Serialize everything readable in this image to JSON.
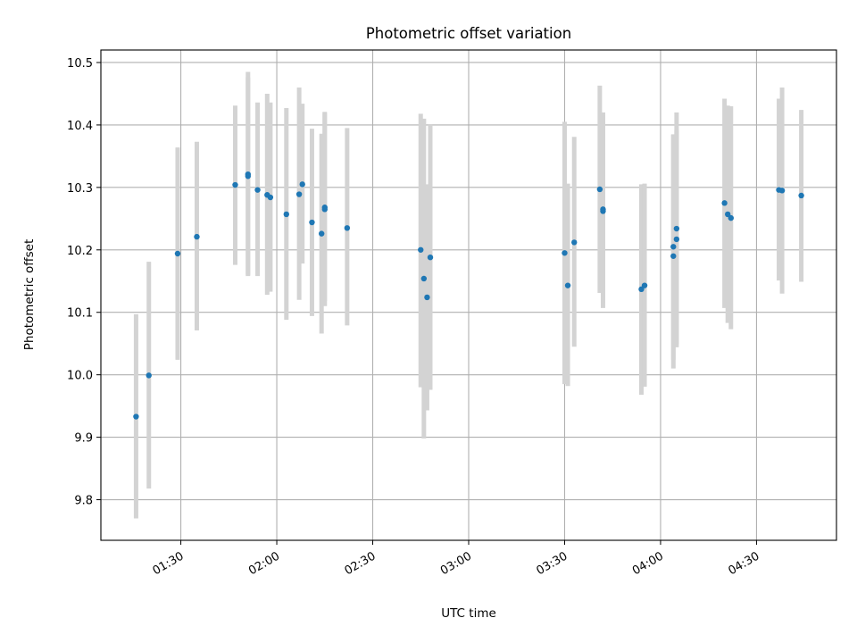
{
  "chart_data": {
    "type": "scatter",
    "title": "Photometric offset variation",
    "xlabel": "UTC time",
    "ylabel": "Photometric offset",
    "xlim_minutes": [
      65,
      295
    ],
    "ylim": [
      9.735,
      10.52
    ],
    "x_ticks": [
      {
        "minutes": 90,
        "label": "01:30"
      },
      {
        "minutes": 120,
        "label": "02:00"
      },
      {
        "minutes": 150,
        "label": "02:30"
      },
      {
        "minutes": 180,
        "label": "03:00"
      },
      {
        "minutes": 210,
        "label": "03:30"
      },
      {
        "minutes": 240,
        "label": "04:00"
      },
      {
        "minutes": 270,
        "label": "04:30"
      }
    ],
    "y_ticks": [
      9.8,
      9.9,
      10.0,
      10.1,
      10.2,
      10.3,
      10.4,
      10.5
    ],
    "grid": true,
    "marker_color": "#1f77b4",
    "errorbar_color": "#d3d3d3",
    "points": [
      {
        "t": "01:16",
        "y": 9.933,
        "lo": 9.77,
        "hi": 10.097
      },
      {
        "t": "01:20",
        "y": 9.999,
        "lo": 9.818,
        "hi": 10.181
      },
      {
        "t": "01:29",
        "y": 10.194,
        "lo": 10.024,
        "hi": 10.364
      },
      {
        "t": "01:35",
        "y": 10.221,
        "lo": 10.071,
        "hi": 10.373
      },
      {
        "t": "01:47",
        "y": 10.304,
        "lo": 10.176,
        "hi": 10.431
      },
      {
        "t": "01:51",
        "y": 10.321,
        "lo": 10.158,
        "hi": 10.485
      },
      {
        "t": "01:51",
        "y": 10.318,
        "lo": 10.16,
        "hi": 10.476
      },
      {
        "t": "01:54",
        "y": 10.296,
        "lo": 10.158,
        "hi": 10.436
      },
      {
        "t": "01:57",
        "y": 10.288,
        "lo": 10.128,
        "hi": 10.45
      },
      {
        "t": "01:58",
        "y": 10.284,
        "lo": 10.133,
        "hi": 10.436
      },
      {
        "t": "02:03",
        "y": 10.257,
        "lo": 10.088,
        "hi": 10.427
      },
      {
        "t": "02:07",
        "y": 10.289,
        "lo": 10.12,
        "hi": 10.46
      },
      {
        "t": "02:08",
        "y": 10.305,
        "lo": 10.178,
        "hi": 10.434
      },
      {
        "t": "02:11",
        "y": 10.244,
        "lo": 10.094,
        "hi": 10.394
      },
      {
        "t": "02:14",
        "y": 10.226,
        "lo": 10.066,
        "hi": 10.386
      },
      {
        "t": "02:15",
        "y": 10.265,
        "lo": 10.11,
        "hi": 10.421
      },
      {
        "t": "02:15",
        "y": 10.268,
        "lo": 10.118,
        "hi": 10.419
      },
      {
        "t": "02:22",
        "y": 10.235,
        "lo": 10.079,
        "hi": 10.395
      },
      {
        "t": "02:45",
        "y": 10.2,
        "lo": 9.98,
        "hi": 10.418
      },
      {
        "t": "02:46",
        "y": 10.154,
        "lo": 9.898,
        "hi": 10.41
      },
      {
        "t": "02:47",
        "y": 10.124,
        "lo": 9.943,
        "hi": 10.305
      },
      {
        "t": "02:48",
        "y": 10.188,
        "lo": 9.976,
        "hi": 10.4
      },
      {
        "t": "03:30",
        "y": 10.195,
        "lo": 9.985,
        "hi": 10.405
      },
      {
        "t": "03:31",
        "y": 10.143,
        "lo": 9.982,
        "hi": 10.306
      },
      {
        "t": "03:33",
        "y": 10.212,
        "lo": 10.045,
        "hi": 10.381
      },
      {
        "t": "03:41",
        "y": 10.297,
        "lo": 10.131,
        "hi": 10.463
      },
      {
        "t": "03:42",
        "y": 10.265,
        "lo": 10.115,
        "hi": 10.416
      },
      {
        "t": "03:42",
        "y": 10.262,
        "lo": 10.107,
        "hi": 10.42
      },
      {
        "t": "03:54",
        "y": 10.137,
        "lo": 9.968,
        "hi": 10.305
      },
      {
        "t": "03:55",
        "y": 10.143,
        "lo": 9.981,
        "hi": 10.306
      },
      {
        "t": "04:04",
        "y": 10.205,
        "lo": 10.024,
        "hi": 10.384
      },
      {
        "t": "04:04",
        "y": 10.19,
        "lo": 10.01,
        "hi": 10.385
      },
      {
        "t": "04:05",
        "y": 10.217,
        "lo": 10.044,
        "hi": 10.392
      },
      {
        "t": "04:05",
        "y": 10.234,
        "lo": 10.049,
        "hi": 10.42
      },
      {
        "t": "04:20",
        "y": 10.275,
        "lo": 10.107,
        "hi": 10.442
      },
      {
        "t": "04:21",
        "y": 10.257,
        "lo": 10.083,
        "hi": 10.431
      },
      {
        "t": "04:22",
        "y": 10.251,
        "lo": 10.073,
        "hi": 10.43
      },
      {
        "t": "04:37",
        "y": 10.296,
        "lo": 10.151,
        "hi": 10.442
      },
      {
        "t": "04:38",
        "y": 10.295,
        "lo": 10.13,
        "hi": 10.46
      },
      {
        "t": "04:44",
        "y": 10.287,
        "lo": 10.149,
        "hi": 10.424
      }
    ]
  }
}
